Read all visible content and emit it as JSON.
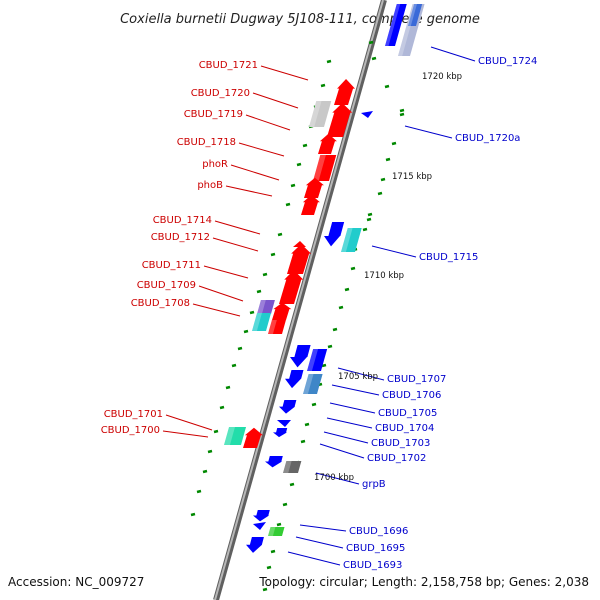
{
  "title": "Coxiella burnetii Dugway 5J108-111, complete genome",
  "footer": {
    "accession": "Accession: NC_009727",
    "topology": "Topology: circular; Length: 2,158,758 bp; Genes: 2,038"
  },
  "colors": {
    "backbone": "#808080",
    "reverse_strand": "#ff0000",
    "forward_strand": "#0000ff",
    "tick": "#008800",
    "reverse_label": "#cc0000",
    "forward_label": "#0000cc"
  },
  "kbp_labels": [
    "1720 kbp",
    "1715 kbp",
    "1710 kbp",
    "1705 kbp",
    "1700 kbp"
  ],
  "reverse_labels": [
    "CBUD_1721",
    "CBUD_1720",
    "CBUD_1719",
    "CBUD_1718",
    "phoR",
    "phoB",
    "CBUD_1714",
    "CBUD_1712",
    "CBUD_1711",
    "CBUD_1709",
    "CBUD_1708",
    "CBUD_1701",
    "CBUD_1700"
  ],
  "forward_labels": [
    "CBUD_1724",
    "CBUD_1720a",
    "CBUD_1715",
    "CBUD_1707",
    "CBUD_1706",
    "CBUD_1705",
    "CBUD_1704",
    "CBUD_1703",
    "CBUD_1702",
    "grpB",
    "CBUD_1696",
    "CBUD_1695",
    "CBUD_1693"
  ]
}
